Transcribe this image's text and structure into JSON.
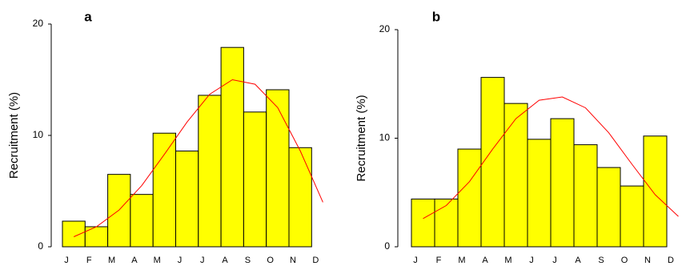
{
  "chart_data": [
    {
      "type": "bar",
      "title": "a",
      "y_label": "Recruitment (%)",
      "categories": [
        "J",
        "F",
        "M",
        "A",
        "M",
        "J",
        "J",
        "A",
        "S",
        "O",
        "N",
        "D"
      ],
      "values": [
        2.3,
        1.8,
        6.5,
        4.7,
        10.2,
        8.6,
        13.6,
        17.9,
        12.1,
        14.1,
        8.9,
        null
      ],
      "color": "#ffff00",
      "curve": {
        "color": "#ff0000",
        "values": [
          0.9,
          1.8,
          3.3,
          5.5,
          8.3,
          11.2,
          13.7,
          15,
          14.6,
          12.5,
          8.6,
          4
        ]
      },
      "ylim": [
        0,
        20
      ],
      "yticks": [
        0,
        10,
        20
      ]
    },
    {
      "type": "bar",
      "title": "b",
      "y_label": "Recruitment (%)",
      "categories": [
        "J",
        "F",
        "M",
        "A",
        "M",
        "J",
        "J",
        "A",
        "S",
        "O",
        "N",
        "D"
      ],
      "values": [
        4.4,
        4.4,
        9,
        15.6,
        13.2,
        9.9,
        11.8,
        9.4,
        7.3,
        5.6,
        10.2,
        null
      ],
      "color": "#ffff00",
      "curve": {
        "color": "#ff0000",
        "values": [
          2.6,
          3.8,
          6,
          9,
          11.8,
          13.5,
          13.8,
          12.8,
          10.5,
          7.6,
          4.8,
          2.8
        ]
      },
      "ylim": [
        0,
        20
      ],
      "yticks": [
        0,
        10,
        20
      ]
    }
  ]
}
